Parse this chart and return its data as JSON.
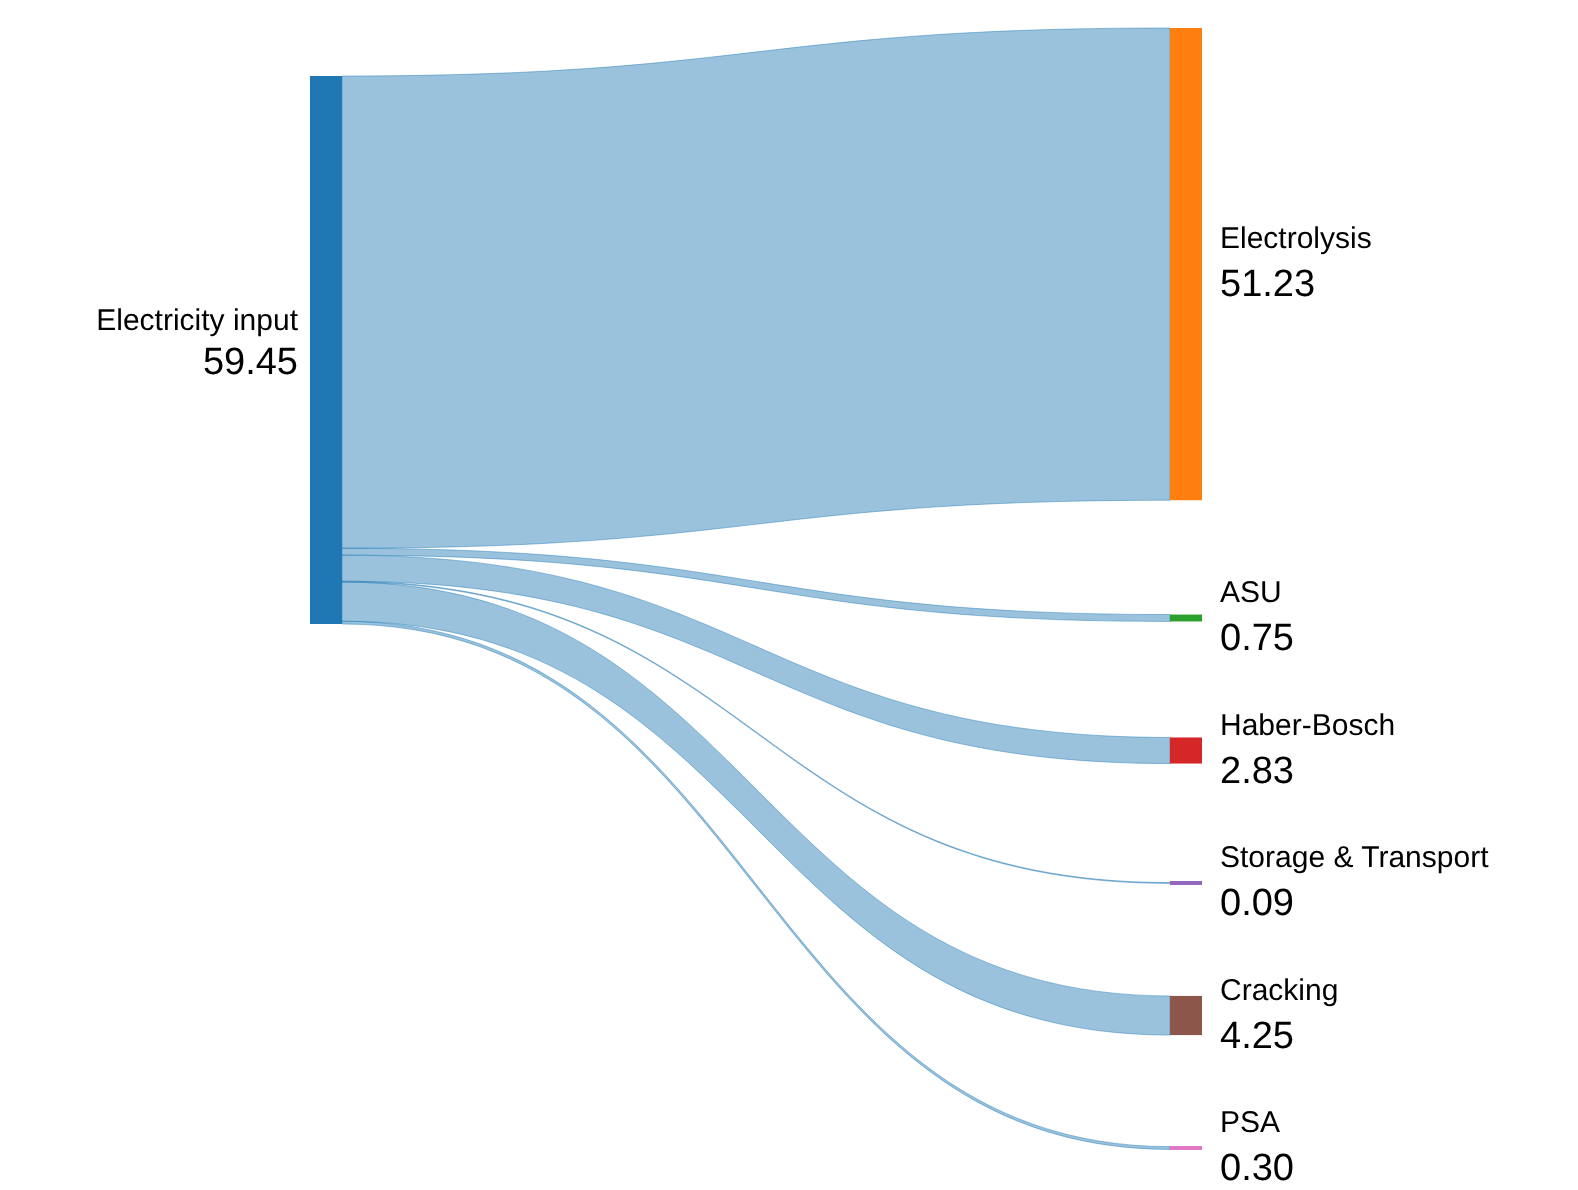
{
  "chart_data": {
    "type": "other",
    "categories": [
      "Electricity input",
      "Electrolysis",
      "ASU",
      "Haber-Bosch",
      "Storage & Transport",
      "Cracking",
      "PSA"
    ],
    "values": [
      59.45,
      51.23,
      0.75,
      2.83,
      0.09,
      4.25,
      0.3
    ],
    "value_labels": [
      "59.45",
      "51.23",
      "0.75",
      "2.83",
      "0.09",
      "4.25",
      "0.30"
    ],
    "colors": [
      "#1f77b4",
      "#ff7f0e",
      "#2ca02c",
      "#d62728",
      "#9467bd",
      "#8c564b",
      "#e377c2"
    ]
  }
}
